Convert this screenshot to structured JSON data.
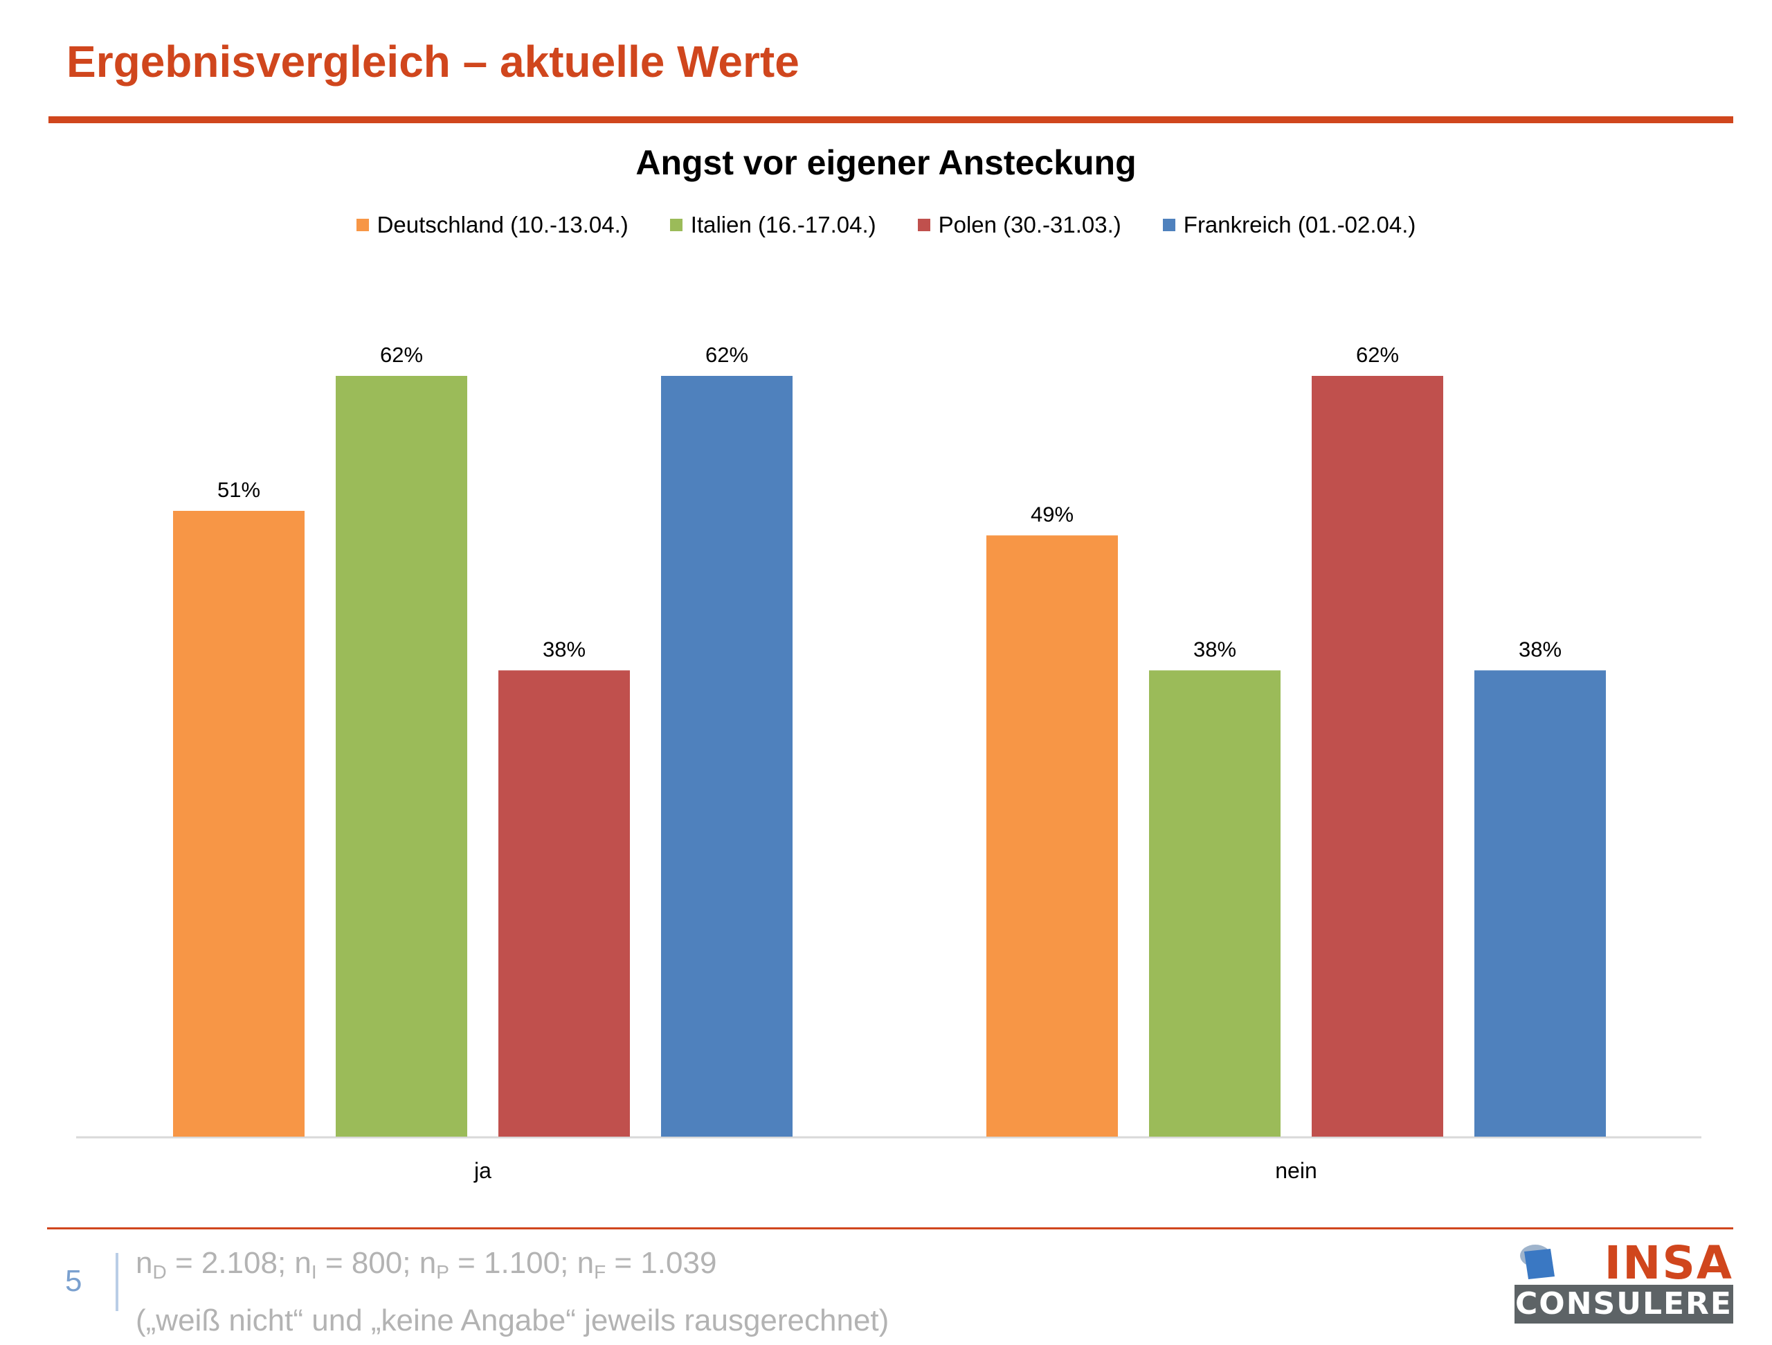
{
  "slide": {
    "title": "Ergebnisvergleich – aktuelle Werte",
    "page_number": "5"
  },
  "footer": {
    "sample_sizes": [
      {
        "letter": "n",
        "sub": "D",
        "rest": " = 2.108; "
      },
      {
        "letter": "n",
        "sub": "I",
        "rest": " = 800; "
      },
      {
        "letter": "n",
        "sub": "P",
        "rest": " = 1.100; "
      },
      {
        "letter": "n",
        "sub": "F",
        "rest": " = 1.039"
      }
    ],
    "note": "(„weiß nicht“ und „keine Angabe“ jeweils rausgerechnet)"
  },
  "logo": {
    "top_text": "INSA",
    "bottom_text": "CONSULERE",
    "colors": {
      "accent": "#d0461d",
      "mark": "#3a78c3",
      "bar": "#5d6366"
    }
  },
  "colors": {
    "accent": "#d0461d",
    "axis": "#d9d9d9"
  },
  "chart_data": {
    "type": "bar",
    "title": "Angst vor eigener Ansteckung",
    "xlabel": "",
    "ylabel": "",
    "categories": [
      "ja",
      "nein"
    ],
    "series": [
      {
        "name": "Deutschland (10.-13.04.)",
        "color": "#f79646",
        "values": [
          51,
          49
        ]
      },
      {
        "name": "Italien (16.-17.04.)",
        "color": "#9bbb59",
        "values": [
          62,
          38
        ]
      },
      {
        "name": "Polen (30.-31.03.)",
        "color": "#c0504d",
        "values": [
          38,
          62
        ]
      },
      {
        "name": "Frankreich (01.-02.04.)",
        "color": "#4f81bd",
        "values": [
          62,
          38
        ]
      }
    ],
    "value_suffix": "%",
    "ylim": [
      0,
      62
    ],
    "grid": false,
    "legend_position": "top"
  }
}
